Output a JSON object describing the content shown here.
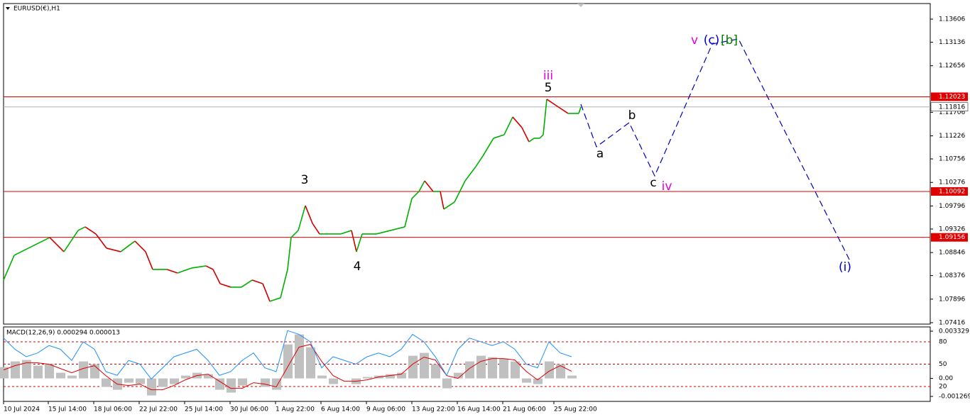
{
  "chart_data": [
    {
      "type": "price",
      "title": "EURUSD(€),H1",
      "xlim": [
        0,
        1305
      ],
      "xticks": [
        {
          "value": 0,
          "label": "10 Jul 2024"
        },
        {
          "value": 63,
          "label": "15 Jul 14:00"
        },
        {
          "value": 127,
          "label": "18 Jul 06:00"
        },
        {
          "value": 191,
          "label": "22 Jul 22:00"
        },
        {
          "value": 255,
          "label": "25 Jul 14:00"
        },
        {
          "value": 319,
          "label": "30 Jul 06:00"
        },
        {
          "value": 383,
          "label": "1 Aug 22:00"
        },
        {
          "value": 447,
          "label": "6 Aug 14:00"
        },
        {
          "value": 511,
          "label": "9 Aug 06:00"
        },
        {
          "value": 575,
          "label": "13 Aug 22:00"
        },
        {
          "value": 639,
          "label": "16 Aug 14:00"
        },
        {
          "value": 703,
          "label": "21 Aug 06:00"
        },
        {
          "value": 775,
          "label": "25 Aug 22:00"
        }
      ],
      "ylim": [
        1.07387,
        1.13924
      ],
      "yticks": [
        1.13606,
        1.13136,
        1.12656,
        1.11706,
        1.11226,
        1.10756,
        1.10276,
        1.09796,
        1.09326,
        1.08846,
        1.08376,
        1.07896,
        1.07416
      ],
      "levels": [
        1.12023,
        1.10092,
        1.09156
      ],
      "level_color": "#e00000",
      "current_price": 1.11816,
      "up_color": "#00b000",
      "down_color": "#d00000",
      "x": [
        0,
        15,
        35,
        55,
        65,
        85,
        105,
        115,
        130,
        145,
        165,
        185,
        200,
        210,
        230,
        245,
        265,
        285,
        295,
        305,
        320,
        335,
        350,
        365,
        375,
        390,
        400,
        405,
        415,
        425,
        435,
        445,
        460,
        475,
        490,
        497,
        505,
        525,
        545,
        565,
        575,
        585,
        593,
        605,
        615,
        620,
        635,
        650,
        665,
        675,
        690,
        705,
        717,
        730,
        740,
        747,
        755,
        760,
        765,
        780,
        795,
        810,
        813
      ],
      "values": [
        1.08285,
        1.08791,
        1.08935,
        1.0908,
        1.09152,
        1.08863,
        1.09297,
        1.09369,
        1.09225,
        1.08935,
        1.08863,
        1.0908,
        1.08863,
        1.08502,
        1.08502,
        1.08429,
        1.08531,
        1.08574,
        1.08502,
        1.08212,
        1.0814,
        1.0814,
        1.08285,
        1.08212,
        1.07851,
        1.07923,
        1.08502,
        1.09152,
        1.09297,
        1.09803,
        1.09442,
        1.09225,
        1.09225,
        1.09225,
        1.09297,
        1.08863,
        1.09225,
        1.09225,
        1.09297,
        1.09369,
        1.09948,
        1.10092,
        1.10309,
        1.10092,
        1.10092,
        1.09731,
        1.09875,
        1.10309,
        1.10598,
        1.10815,
        1.11177,
        1.11249,
        1.11611,
        1.11394,
        1.11104,
        1.11177,
        1.11177,
        1.11249,
        1.11972,
        1.11827,
        1.11683,
        1.11683,
        1.11816
      ],
      "projection": {
        "color": "#0000c0",
        "x": [
          813,
          835,
          881,
          917,
          998,
          1035,
          1192
        ],
        "values": [
          1.11871,
          1.11003,
          1.11495,
          1.1041,
          1.131,
          1.13201,
          1.08675
        ]
      },
      "annotations": [
        {
          "text": "iii",
          "x": 767,
          "y": 1.12449,
          "color": "#e000e0"
        },
        {
          "text": "5",
          "x": 767,
          "y": 1.12203,
          "color": "#000000"
        },
        {
          "text": "3",
          "x": 424,
          "y": 1.10324,
          "color": "#000000"
        },
        {
          "text": "4",
          "x": 498,
          "y": 1.08559,
          "color": "#000000"
        },
        {
          "text": "a",
          "x": 840,
          "y": 1.10859,
          "color": "#000000"
        },
        {
          "text": "b",
          "x": 885,
          "y": 1.11639,
          "color": "#000000"
        },
        {
          "text": "c",
          "x": 915,
          "y": 1.10266,
          "color": "#000000"
        },
        {
          "text": "iv",
          "x": 934,
          "y": 1.10193,
          "color": "#e000e0"
        },
        {
          "text": "v",
          "x": 973,
          "y": 1.13172,
          "color": "#e000e0"
        },
        {
          "text": "(c)",
          "x": 997,
          "y": 1.13172,
          "color": "#0000c0"
        },
        {
          "text": "[b]",
          "x": 1022,
          "y": 1.13172,
          "color": "#008000"
        },
        {
          "text": "(i)",
          "x": 1185,
          "y": 1.08545,
          "color": "#0000c0"
        }
      ]
    },
    {
      "type": "macd",
      "title": "MACD(12,26,9) 0.000294 0.000013",
      "xlim": [
        0,
        1305
      ],
      "ylim": [
        -0.00162,
        0.00358
      ],
      "yticks": [
        0.003329,
        {
          "value": 0,
          "label": "0.00"
        },
        -0.001269
      ],
      "y2lim": [
        0,
        99
      ],
      "y2ticks": [
        80,
        50,
        20
      ],
      "level_color": "#e00000",
      "x": [
        0,
        16,
        32,
        48,
        64,
        80,
        96,
        112,
        128,
        144,
        160,
        176,
        192,
        208,
        224,
        240,
        256,
        272,
        288,
        304,
        320,
        336,
        352,
        368,
        384,
        400,
        416,
        432,
        448,
        464,
        480,
        496,
        512,
        528,
        544,
        560,
        576,
        592,
        608,
        624,
        640,
        656,
        672,
        688,
        704,
        720,
        736,
        752,
        768,
        784,
        800
      ],
      "series": [
        {
          "kind": "histogram",
          "color": "#c0c0c0",
          "values": [
            0.0008,
            0.0012,
            0.0013,
            0.0009,
            0.001,
            0.0004,
            0.0002,
            0.0012,
            0.001,
            -0.0006,
            -0.0008,
            -0.0003,
            -0.0004,
            -0.0012,
            -0.0006,
            -0.0004,
            0.0002,
            0.0004,
            0.0003,
            -0.0008,
            -0.001,
            -0.0005,
            0.0,
            -0.0006,
            -0.0008,
            0.0024,
            0.0031,
            0.0022,
            0.0002,
            -0.0004,
            0.0,
            -0.0004,
            0.0001,
            0.0002,
            0.0003,
            0.0004,
            0.0016,
            0.0018,
            0.001,
            -0.0007,
            0.0004,
            0.0012,
            0.0016,
            0.0015,
            0.0014,
            0.0012,
            -0.0003,
            -0.0004,
            0.0012,
            0.001,
            0.0002
          ]
        },
        {
          "kind": "line",
          "color": "#e00000",
          "values": [
            0.0006,
            0.0009,
            0.0011,
            0.0011,
            0.001,
            0.0007,
            0.0004,
            0.0007,
            0.0009,
            0.0002,
            -0.0004,
            -0.0005,
            -0.0004,
            -0.0008,
            -0.0008,
            -0.0005,
            -0.0001,
            0.0002,
            0.0003,
            -0.0002,
            -0.0007,
            -0.0007,
            -0.0003,
            -0.0004,
            -0.0006,
            0.0008,
            0.0022,
            0.0024,
            0.0012,
            0.0002,
            -0.0002,
            -0.0002,
            -0.0001,
            0.0001,
            0.0002,
            0.0003,
            0.001,
            0.0015,
            0.0013,
            0.0002,
            0.0,
            0.0007,
            0.0012,
            0.0014,
            0.0014,
            0.0013,
            0.0005,
            -0.0001,
            0.0005,
            0.0009,
            0.0005
          ]
        },
        {
          "kind": "line",
          "color": "#1e90ff",
          "axis": "y2",
          "values": [
            85,
            70,
            60,
            65,
            75,
            70,
            55,
            80,
            70,
            40,
            35,
            55,
            50,
            30,
            45,
            60,
            65,
            70,
            55,
            35,
            40,
            55,
            65,
            45,
            40,
            95,
            90,
            80,
            45,
            60,
            55,
            50,
            60,
            65,
            60,
            70,
            90,
            80,
            60,
            35,
            70,
            85,
            80,
            75,
            80,
            70,
            50,
            45,
            80,
            65,
            60
          ]
        }
      ]
    }
  ]
}
